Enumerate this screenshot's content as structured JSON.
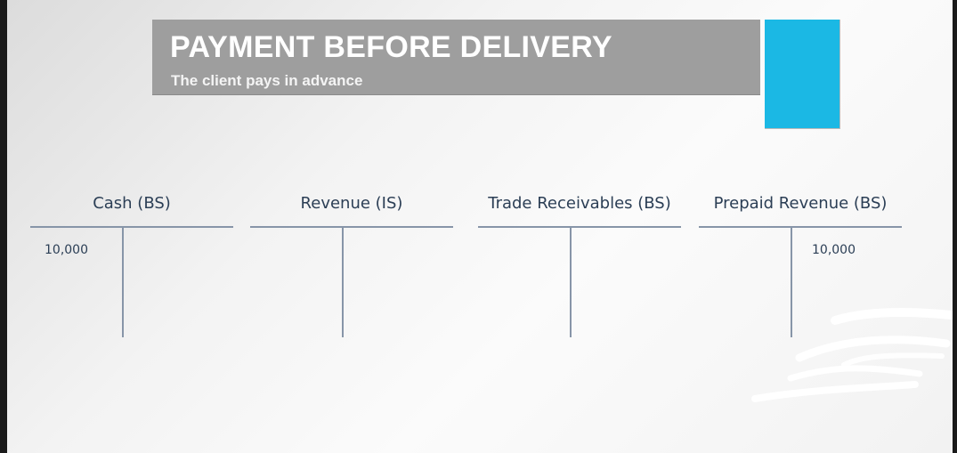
{
  "title": "PAYMENT BEFORE DELIVERY",
  "subtitle": "The client pays in advance",
  "accent_color": "#1bb8e4",
  "accounts": [
    {
      "name": "Cash (BS)",
      "debit": "10,000",
      "credit": ""
    },
    {
      "name": "Revenue (IS)",
      "debit": "",
      "credit": ""
    },
    {
      "name": "Trade Receivables (BS)",
      "debit": "",
      "credit": ""
    },
    {
      "name": "Prepaid Revenue (BS)",
      "debit": "",
      "credit": "10,000"
    }
  ]
}
